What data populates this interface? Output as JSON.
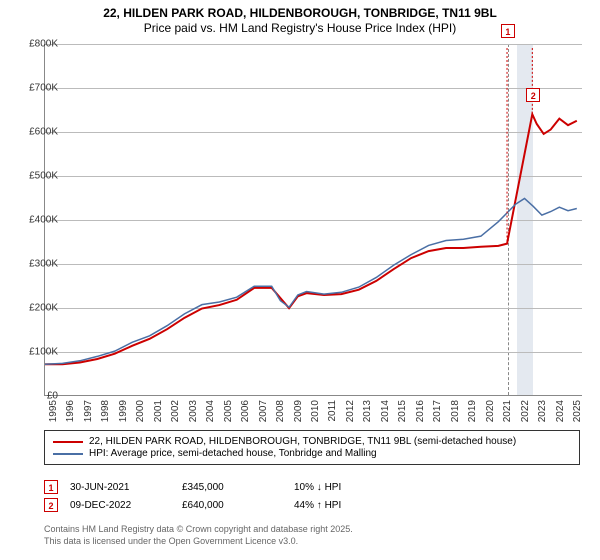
{
  "title_line1": "22, HILDEN PARK ROAD, HILDENBOROUGH, TONBRIDGE, TN11 9BL",
  "title_line2": "Price paid vs. HM Land Registry's House Price Index (HPI)",
  "chart": {
    "type": "line",
    "x_start_year": 1995,
    "x_end_year": 2025.8,
    "y_min": 0,
    "y_max": 800000,
    "y_ticks": [
      0,
      100000,
      200000,
      300000,
      400000,
      500000,
      600000,
      700000,
      800000
    ],
    "y_tick_labels": [
      "£0",
      "£100K",
      "£200K",
      "£300K",
      "£400K",
      "£500K",
      "£600K",
      "£700K",
      "£800K"
    ],
    "x_ticks": [
      1995,
      1996,
      1997,
      1998,
      1999,
      2000,
      2001,
      2002,
      2003,
      2004,
      2005,
      2006,
      2007,
      2008,
      2009,
      2010,
      2011,
      2012,
      2013,
      2014,
      2015,
      2016,
      2017,
      2018,
      2019,
      2020,
      2021,
      2022,
      2023,
      2024,
      2025
    ],
    "grid_color": "#bbbbbb",
    "axis_color": "#888888",
    "unknown_band": {
      "start": 2022.0,
      "end": 2022.95,
      "color": "#e4e9f0"
    },
    "today_x": 2021.5,
    "series": [
      {
        "name": "price_paid",
        "label": "22, HILDEN PARK ROAD, HILDENBOROUGH, TONBRIDGE, TN11 9BL (semi-detached house)",
        "color": "#cc0000",
        "width": 2,
        "points": [
          [
            1995.0,
            70000
          ],
          [
            1996.0,
            70000
          ],
          [
            1997.0,
            74000
          ],
          [
            1998.0,
            82000
          ],
          [
            1999.0,
            94000
          ],
          [
            2000.0,
            112000
          ],
          [
            2001.0,
            128000
          ],
          [
            2002.0,
            150000
          ],
          [
            2003.0,
            176000
          ],
          [
            2004.0,
            197000
          ],
          [
            2005.0,
            205000
          ],
          [
            2006.0,
            217000
          ],
          [
            2007.0,
            244000
          ],
          [
            2008.0,
            244000
          ],
          [
            2009.0,
            198000
          ],
          [
            2009.5,
            225000
          ],
          [
            2010.0,
            232000
          ],
          [
            2011.0,
            228000
          ],
          [
            2012.0,
            230000
          ],
          [
            2013.0,
            240000
          ],
          [
            2014.0,
            260000
          ],
          [
            2015.0,
            287000
          ],
          [
            2016.0,
            312000
          ],
          [
            2017.0,
            328000
          ],
          [
            2018.0,
            335000
          ],
          [
            2019.0,
            335000
          ],
          [
            2020.0,
            338000
          ],
          [
            2021.0,
            340000
          ],
          [
            2021.5,
            345000
          ],
          [
            2022.95,
            640000
          ],
          [
            2023.2,
            618000
          ],
          [
            2023.6,
            595000
          ],
          [
            2024.0,
            605000
          ],
          [
            2024.5,
            630000
          ],
          [
            2025.0,
            615000
          ],
          [
            2025.5,
            625000
          ]
        ]
      },
      {
        "name": "hpi",
        "label": "HPI: Average price, semi-detached house, Tonbridge and Malling",
        "color": "#4a6fa5",
        "width": 1.5,
        "points": [
          [
            1995.0,
            70000
          ],
          [
            1996.0,
            72000
          ],
          [
            1997.0,
            78000
          ],
          [
            1998.0,
            88000
          ],
          [
            1999.0,
            100000
          ],
          [
            2000.0,
            120000
          ],
          [
            2001.0,
            135000
          ],
          [
            2002.0,
            158000
          ],
          [
            2003.0,
            185000
          ],
          [
            2004.0,
            206000
          ],
          [
            2005.0,
            212000
          ],
          [
            2006.0,
            223000
          ],
          [
            2007.0,
            248000
          ],
          [
            2008.0,
            248000
          ],
          [
            2008.5,
            215000
          ],
          [
            2009.0,
            200000
          ],
          [
            2009.5,
            228000
          ],
          [
            2010.0,
            236000
          ],
          [
            2011.0,
            230000
          ],
          [
            2012.0,
            234000
          ],
          [
            2013.0,
            246000
          ],
          [
            2014.0,
            268000
          ],
          [
            2015.0,
            296000
          ],
          [
            2016.0,
            320000
          ],
          [
            2017.0,
            341000
          ],
          [
            2018.0,
            352000
          ],
          [
            2019.0,
            355000
          ],
          [
            2020.0,
            362000
          ],
          [
            2021.0,
            395000
          ],
          [
            2022.0,
            435000
          ],
          [
            2022.5,
            448000
          ],
          [
            2023.0,
            430000
          ],
          [
            2023.5,
            410000
          ],
          [
            2024.0,
            418000
          ],
          [
            2024.5,
            428000
          ],
          [
            2025.0,
            420000
          ],
          [
            2025.5,
            425000
          ]
        ]
      }
    ],
    "markers": [
      {
        "id": "1",
        "x": 2021.5,
        "y": 345000,
        "label_dy": -220
      },
      {
        "id": "2",
        "x": 2022.95,
        "y": 640000,
        "label_dy": -26
      }
    ]
  },
  "legend": {
    "rows": [
      {
        "color": "#cc0000",
        "text": "22, HILDEN PARK ROAD, HILDENBOROUGH, TONBRIDGE, TN11 9BL (semi-detached house)"
      },
      {
        "color": "#4a6fa5",
        "text": "HPI: Average price, semi-detached house, Tonbridge and Malling"
      }
    ]
  },
  "events": [
    {
      "id": "1",
      "date": "30-JUN-2021",
      "price": "£345,000",
      "pct": "10% ↓ HPI"
    },
    {
      "id": "2",
      "date": "09-DEC-2022",
      "price": "£640,000",
      "pct": "44% ↑ HPI"
    }
  ],
  "footer_line1": "Contains HM Land Registry data © Crown copyright and database right 2025.",
  "footer_line2": "This data is licensed under the Open Government Licence v3.0."
}
